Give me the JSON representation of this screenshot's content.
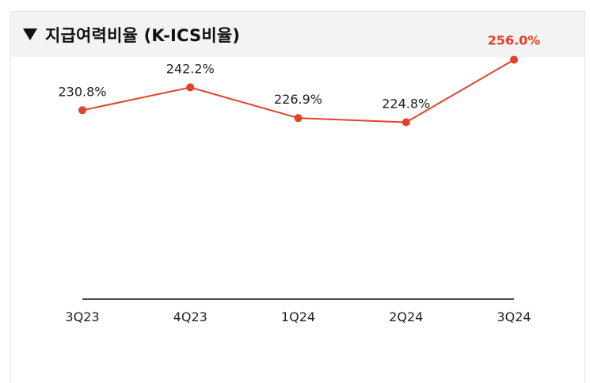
{
  "header": {
    "title": "지급여력비율 (K-ICS비율)",
    "marker_icon": "triangle-down-icon"
  },
  "chart_data": {
    "type": "line",
    "title": "지급여력비율 (K-ICS비율)",
    "categories": [
      "3Q23",
      "4Q23",
      "1Q24",
      "2Q24",
      "3Q24"
    ],
    "series": [
      {
        "values": [
          230.8,
          242.2,
          226.9,
          224.8,
          256.0
        ],
        "labels": [
          "230.8%",
          "242.2%",
          "226.9%",
          "224.8%",
          "256.0%"
        ],
        "color": "#e4412b"
      }
    ],
    "highlight_index": 4,
    "highlight_color": "#e4412b",
    "ylim": [
      120,
      270
    ],
    "grid": false
  }
}
